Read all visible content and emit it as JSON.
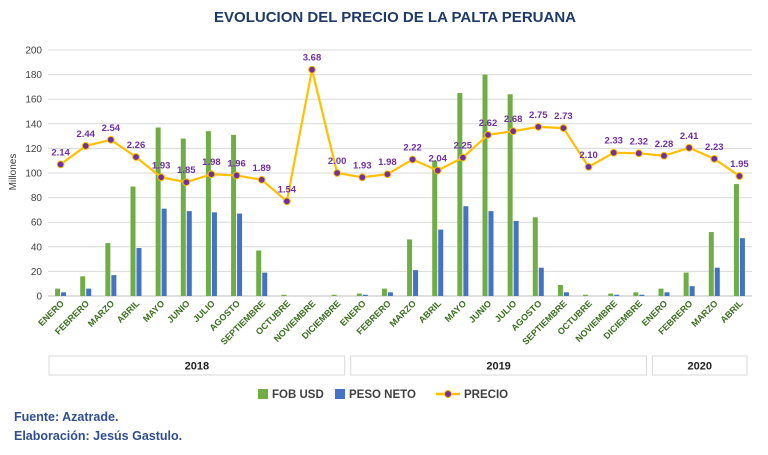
{
  "chart_data": {
    "type": "bar",
    "title": "EVOLUCION DEL PRECIO DE LA PALTA PERUANA",
    "ylabel": "Millones",
    "ylim": [
      0,
      200
    ],
    "yticks": [
      0,
      20,
      40,
      60,
      80,
      100,
      120,
      140,
      160,
      180,
      200
    ],
    "categories": [
      "ENERO",
      "FEBRERO",
      "MARZO",
      "ABRIL",
      "MAYO",
      "JUNIO",
      "JULIO",
      "AGOSTO",
      "SEPTIEMBRE",
      "OCTUBRE",
      "NOVIEMBRE",
      "DICIEMBRE",
      "ENERO",
      "FEBRERO",
      "MARZO",
      "ABRIL",
      "MAYO",
      "JUNIO",
      "JULIO",
      "AGOSTO",
      "SEPTIEMBRE",
      "OCTUBRE",
      "NOVIEMBRE",
      "DICIEMBRE",
      "ENERO",
      "FEBRERO",
      "MARZO",
      "ABRIL"
    ],
    "years": [
      {
        "label": "2018",
        "start": 0,
        "end": 11
      },
      {
        "label": "2019",
        "start": 12,
        "end": 23
      },
      {
        "label": "2020",
        "start": 24,
        "end": 27
      }
    ],
    "series": [
      {
        "name": "FOB USD",
        "type": "bar",
        "color": "#70ad47",
        "values": [
          6,
          16,
          43,
          89,
          137,
          128,
          134,
          131,
          37,
          1,
          0,
          1,
          2,
          6,
          46,
          110,
          165,
          180,
          164,
          64,
          9,
          1,
          2,
          3,
          6,
          19,
          52,
          91
        ]
      },
      {
        "name": "PESO NETO",
        "type": "bar",
        "color": "#4472c4",
        "values": [
          3,
          6,
          17,
          39,
          71,
          69,
          68,
          67,
          19,
          0,
          0,
          0,
          1,
          3,
          21,
          54,
          73,
          69,
          61,
          23,
          3,
          0,
          1,
          1,
          3,
          8,
          23,
          47
        ]
      },
      {
        "name": "PRECIO",
        "type": "line",
        "color": "#ffc000",
        "marker_color": "#7030a0",
        "values": [
          2.14,
          2.44,
          2.54,
          2.26,
          1.93,
          1.85,
          1.98,
          1.96,
          1.89,
          1.54,
          3.68,
          2.0,
          1.93,
          1.98,
          2.22,
          2.04,
          2.25,
          2.62,
          2.68,
          2.75,
          2.73,
          2.1,
          2.33,
          2.32,
          2.28,
          2.41,
          2.23,
          1.95
        ],
        "labels": [
          "2.14",
          "2.44",
          "2.54",
          "2.26",
          "1.93",
          "1.85",
          "1.98",
          "1.96",
          "1.89",
          "1.54",
          "3.68",
          "2.00",
          "1.93",
          "1.98",
          "2.22",
          "2.04",
          "2.25",
          "2.62",
          "2.68",
          "2.75",
          "2.73",
          "2.10",
          "2.33",
          "2.32",
          "2.28",
          "2.41",
          "2.23",
          "1.95"
        ],
        "axis_scale": 50
      }
    ],
    "legend": {
      "placement": "bottom",
      "items": [
        "FOB USD",
        "PESO NETO",
        "PRECIO"
      ]
    }
  },
  "footer": {
    "source": "Fuente: Azatrade.",
    "credit": "Elaboración: Jesús Gastulo."
  }
}
